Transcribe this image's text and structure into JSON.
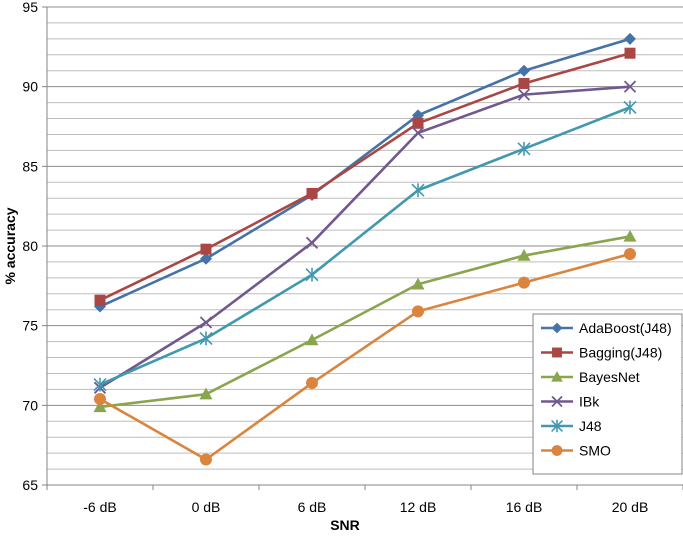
{
  "chart_data": {
    "type": "line",
    "title": "",
    "xlabel": "SNR",
    "ylabel": "% accuracy",
    "categories": [
      "-6 dB",
      "0 dB",
      "6 dB",
      "12 dB",
      "16 dB",
      "20 dB"
    ],
    "ylim": [
      65,
      95
    ],
    "yticks": [
      65,
      70,
      75,
      80,
      85,
      90,
      95
    ],
    "minor_step": 1,
    "grid": true,
    "legend_position": "bottom-right",
    "series": [
      {
        "name": "AdaBoost(J48)",
        "color": "#4572A7",
        "marker": "diamond",
        "values": [
          76.2,
          79.2,
          83.2,
          88.2,
          91.0,
          93.0
        ]
      },
      {
        "name": "Bagging(J48)",
        "color": "#AA4643",
        "marker": "square",
        "values": [
          76.6,
          79.8,
          83.3,
          87.7,
          90.2,
          92.1
        ]
      },
      {
        "name": "BayesNet",
        "color": "#89A54E",
        "marker": "triangle",
        "values": [
          69.9,
          70.7,
          74.1,
          77.6,
          79.4,
          80.6
        ]
      },
      {
        "name": "IBk",
        "color": "#71588F",
        "marker": "x",
        "values": [
          71.1,
          75.2,
          80.2,
          87.1,
          89.5,
          90.0
        ]
      },
      {
        "name": "J48",
        "color": "#4198AF",
        "marker": "star",
        "values": [
          71.3,
          74.2,
          78.2,
          83.5,
          86.1,
          88.7
        ]
      },
      {
        "name": "SMO",
        "color": "#DB843D",
        "marker": "circle",
        "values": [
          70.4,
          66.6,
          71.4,
          75.9,
          77.7,
          79.5
        ]
      }
    ]
  }
}
